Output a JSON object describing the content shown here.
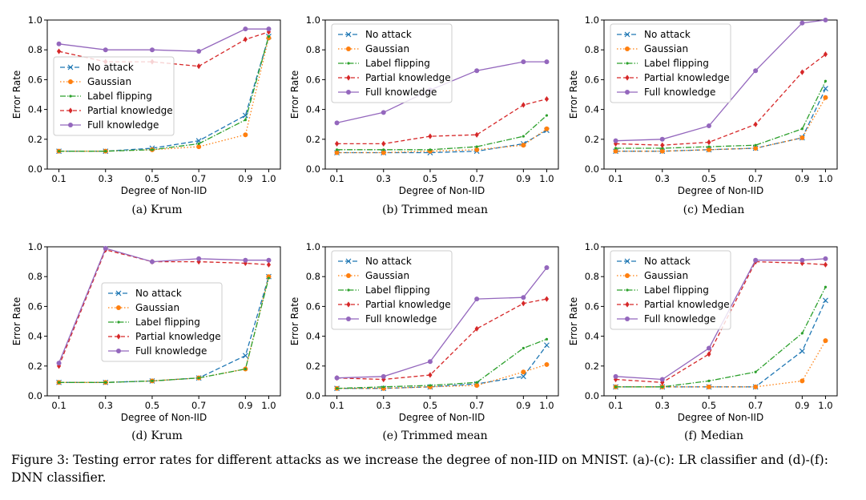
{
  "caption": "Figure 3: Testing error rates for different attacks as we increase the degree of non-IID on MNIST. (a)-(c): LR classifier and (d)-(f): DNN classifier.",
  "series_styles": [
    {
      "name": "No attack",
      "color": "#1f77b4",
      "dash": "6,3",
      "marker": "x"
    },
    {
      "name": "Gaussian",
      "color": "#ff7f0e",
      "dash": "1.5,2.5",
      "marker": "circle"
    },
    {
      "name": "Label flipping",
      "color": "#2ca02c",
      "dash": "7,2,1.5,2",
      "marker": "point"
    },
    {
      "name": "Partial knowledge",
      "color": "#d62728",
      "dash": "5,3",
      "marker": "diamond"
    },
    {
      "name": "Full knowledge",
      "color": "#9467bd",
      "dash": "",
      "marker": "circle"
    }
  ],
  "chart_data": [
    {
      "type": "line",
      "subcaption": "(a) Krum",
      "xlabel": "Degree of Non-IID",
      "ylabel": "Error Rate",
      "x": [
        0.1,
        0.3,
        0.5,
        0.7,
        0.9,
        1.0
      ],
      "xticks": [
        "0.1",
        "0.3",
        "0.5",
        "0.7",
        "0.9",
        "1.0"
      ],
      "yticks": [
        "0.0",
        "0.2",
        "0.4",
        "0.6",
        "0.8",
        "1.0"
      ],
      "ylim": [
        0,
        1
      ],
      "legend_loc": "center-left",
      "series": [
        {
          "name": "No attack",
          "values": [
            0.12,
            0.12,
            0.14,
            0.19,
            0.36,
            0.89
          ]
        },
        {
          "name": "Gaussian",
          "values": [
            0.12,
            0.12,
            0.13,
            0.15,
            0.23,
            0.88
          ]
        },
        {
          "name": "Label flipping",
          "values": [
            0.12,
            0.12,
            0.13,
            0.17,
            0.33,
            0.89
          ]
        },
        {
          "name": "Partial knowledge",
          "values": [
            0.79,
            0.72,
            0.72,
            0.69,
            0.87,
            0.92
          ]
        },
        {
          "name": "Full knowledge",
          "values": [
            0.84,
            0.8,
            0.8,
            0.79,
            0.94,
            0.94
          ]
        }
      ]
    },
    {
      "type": "line",
      "subcaption": "(b) Trimmed mean",
      "xlabel": "Degree of Non-IID",
      "ylabel": "Error Rate",
      "x": [
        0.1,
        0.3,
        0.5,
        0.7,
        0.9,
        1.0
      ],
      "xticks": [
        "0.1",
        "0.3",
        "0.5",
        "0.7",
        "0.9",
        "1.0"
      ],
      "yticks": [
        "0.0",
        "0.2",
        "0.4",
        "0.6",
        "0.8",
        "1.0"
      ],
      "ylim": [
        0,
        1
      ],
      "legend_loc": "upper-left",
      "series": [
        {
          "name": "No attack",
          "values": [
            0.11,
            0.11,
            0.11,
            0.12,
            0.17,
            0.26
          ]
        },
        {
          "name": "Gaussian",
          "values": [
            0.11,
            0.11,
            0.12,
            0.13,
            0.16,
            0.27
          ]
        },
        {
          "name": "Label flipping",
          "values": [
            0.13,
            0.13,
            0.13,
            0.15,
            0.22,
            0.36
          ]
        },
        {
          "name": "Partial knowledge",
          "values": [
            0.17,
            0.17,
            0.22,
            0.23,
            0.43,
            0.47
          ]
        },
        {
          "name": "Full knowledge",
          "values": [
            0.31,
            0.38,
            0.53,
            0.66,
            0.72,
            0.72
          ]
        }
      ]
    },
    {
      "type": "line",
      "subcaption": "(c) Median",
      "xlabel": "Degree of Non-IID",
      "ylabel": "Error Rate",
      "x": [
        0.1,
        0.3,
        0.5,
        0.7,
        0.9,
        1.0
      ],
      "xticks": [
        "0.1",
        "0.3",
        "0.5",
        "0.7",
        "0.9",
        "1.0"
      ],
      "yticks": [
        "0.0",
        "0.2",
        "0.4",
        "0.6",
        "0.8",
        "1.0"
      ],
      "ylim": [
        0,
        1
      ],
      "legend_loc": "upper-left",
      "series": [
        {
          "name": "No attack",
          "values": [
            0.12,
            0.12,
            0.13,
            0.14,
            0.21,
            0.54
          ]
        },
        {
          "name": "Gaussian",
          "values": [
            0.12,
            0.12,
            0.13,
            0.14,
            0.21,
            0.48
          ]
        },
        {
          "name": "Label flipping",
          "values": [
            0.14,
            0.14,
            0.15,
            0.16,
            0.27,
            0.59
          ]
        },
        {
          "name": "Partial knowledge",
          "values": [
            0.17,
            0.16,
            0.18,
            0.3,
            0.65,
            0.77
          ]
        },
        {
          "name": "Full knowledge",
          "values": [
            0.19,
            0.2,
            0.29,
            0.66,
            0.98,
            1.0
          ]
        }
      ]
    },
    {
      "type": "line",
      "subcaption": "(d) Krum",
      "xlabel": "Degree of Non-IID",
      "ylabel": "Error Rate",
      "x": [
        0.1,
        0.3,
        0.5,
        0.7,
        0.9,
        1.0
      ],
      "xticks": [
        "0.1",
        "0.3",
        "0.5",
        "0.7",
        "0.9",
        "1.0"
      ],
      "yticks": [
        "0.0",
        "0.2",
        "0.4",
        "0.6",
        "0.8",
        "1.0"
      ],
      "ylim": [
        0,
        1
      ],
      "legend_loc": "center",
      "series": [
        {
          "name": "No attack",
          "values": [
            0.09,
            0.09,
            0.1,
            0.12,
            0.27,
            0.8
          ]
        },
        {
          "name": "Gaussian",
          "values": [
            0.09,
            0.09,
            0.1,
            0.12,
            0.18,
            0.8
          ]
        },
        {
          "name": "Label flipping",
          "values": [
            0.09,
            0.09,
            0.1,
            0.12,
            0.18,
            0.79
          ]
        },
        {
          "name": "Partial knowledge",
          "values": [
            0.2,
            0.98,
            0.9,
            0.9,
            0.89,
            0.88
          ]
        },
        {
          "name": "Full knowledge",
          "values": [
            0.22,
            0.99,
            0.9,
            0.92,
            0.91,
            0.91
          ]
        }
      ]
    },
    {
      "type": "line",
      "subcaption": "(e) Trimmed mean",
      "xlabel": "Degree of Non-IID",
      "ylabel": "Error Rate",
      "x": [
        0.1,
        0.3,
        0.5,
        0.7,
        0.9,
        1.0
      ],
      "xticks": [
        "0.1",
        "0.3",
        "0.5",
        "0.7",
        "0.9",
        "1.0"
      ],
      "yticks": [
        "0.0",
        "0.2",
        "0.4",
        "0.6",
        "0.8",
        "1.0"
      ],
      "ylim": [
        0,
        1
      ],
      "legend_loc": "upper-left",
      "series": [
        {
          "name": "No attack",
          "values": [
            0.05,
            0.05,
            0.06,
            0.08,
            0.13,
            0.34
          ]
        },
        {
          "name": "Gaussian",
          "values": [
            0.05,
            0.05,
            0.06,
            0.07,
            0.16,
            0.21
          ]
        },
        {
          "name": "Label flipping",
          "values": [
            0.05,
            0.06,
            0.07,
            0.09,
            0.32,
            0.38
          ]
        },
        {
          "name": "Partial knowledge",
          "values": [
            0.12,
            0.11,
            0.14,
            0.45,
            0.62,
            0.65
          ]
        },
        {
          "name": "Full knowledge",
          "values": [
            0.12,
            0.13,
            0.23,
            0.65,
            0.66,
            0.86
          ]
        }
      ]
    },
    {
      "type": "line",
      "subcaption": "(f) Median",
      "xlabel": "Degree of Non-IID",
      "ylabel": "Error Rate",
      "x": [
        0.1,
        0.3,
        0.5,
        0.7,
        0.9,
        1.0
      ],
      "xticks": [
        "0.1",
        "0.3",
        "0.5",
        "0.7",
        "0.9",
        "1.0"
      ],
      "yticks": [
        "0.0",
        "0.2",
        "0.4",
        "0.6",
        "0.8",
        "1.0"
      ],
      "ylim": [
        0,
        1
      ],
      "legend_loc": "upper-left",
      "series": [
        {
          "name": "No attack",
          "values": [
            0.06,
            0.06,
            0.06,
            0.06,
            0.3,
            0.64
          ]
        },
        {
          "name": "Gaussian",
          "values": [
            0.06,
            0.06,
            0.06,
            0.06,
            0.1,
            0.37
          ]
        },
        {
          "name": "Label flipping",
          "values": [
            0.06,
            0.06,
            0.1,
            0.16,
            0.42,
            0.73
          ]
        },
        {
          "name": "Partial knowledge",
          "values": [
            0.11,
            0.09,
            0.28,
            0.9,
            0.89,
            0.88
          ]
        },
        {
          "name": "Full knowledge",
          "values": [
            0.13,
            0.11,
            0.32,
            0.91,
            0.91,
            0.92
          ]
        }
      ]
    }
  ]
}
